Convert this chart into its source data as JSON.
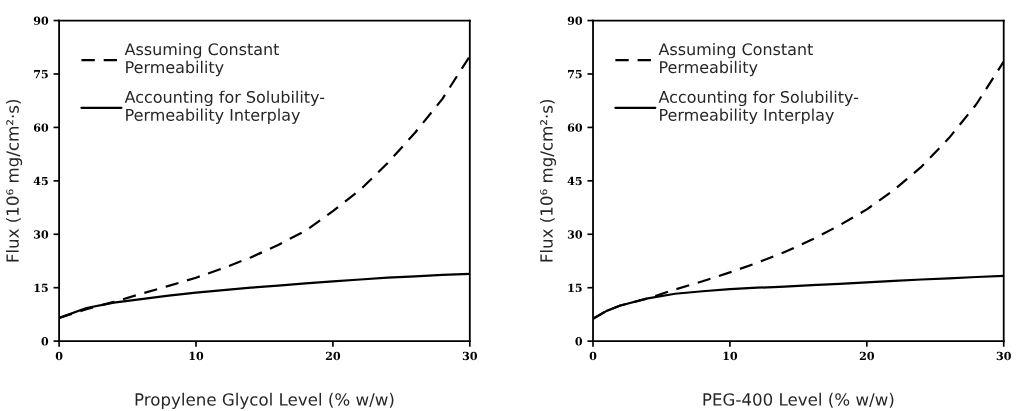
{
  "chart_data": [
    {
      "type": "line",
      "xlabel": "Propylene Glycol Level (% w/w)",
      "ylabel": "Flux (10⁶ mg/cm²·s)",
      "x": [
        0,
        2,
        4,
        6,
        8,
        10,
        12,
        14,
        16,
        18,
        20,
        22,
        24,
        26,
        28,
        30
      ],
      "series": [
        {
          "name": "Assuming Constant\nPermeability",
          "color": "#000000",
          "line_style": "dashed",
          "values": [
            6.5,
            9,
            11,
            13.3,
            15.5,
            17.8,
            20.5,
            23.5,
            27,
            31,
            36.5,
            42.5,
            50,
            58.5,
            68,
            80
          ]
        },
        {
          "name": "Accounting for Solubility-\nPermeability Interplay",
          "color": "#000000",
          "line_style": "solid",
          "values": [
            6.5,
            9.3,
            10.8,
            11.8,
            12.8,
            13.6,
            14.3,
            15,
            15.6,
            16.2,
            16.8,
            17.3,
            17.8,
            18.2,
            18.6,
            18.9
          ]
        }
      ],
      "xlim": [
        0,
        30
      ],
      "xticks": [
        0,
        10,
        20,
        30
      ],
      "ylim": [
        0,
        90
      ],
      "yticks": [
        0,
        15,
        30,
        45,
        60,
        75,
        90
      ],
      "grid": false,
      "legend": "top left",
      "marker": "none"
    },
    {
      "type": "line",
      "xlabel": "PEG-400 Level (% w/w)",
      "ylabel": "Flux (10⁶ mg/cm²·s)",
      "x": [
        0,
        1,
        2,
        4,
        6,
        8,
        10,
        12,
        14,
        16,
        18,
        20,
        22,
        24,
        26,
        28,
        30
      ],
      "series": [
        {
          "name": "Assuming Constant\nPermeability",
          "color": "#000000",
          "line_style": "dashed",
          "values": [
            6.3,
            8.5,
            10,
            12,
            14.5,
            16.8,
            19.3,
            22,
            25,
            28.5,
            32.5,
            37,
            42.5,
            49,
            57,
            66.5,
            78.5
          ]
        },
        {
          "name": "Accounting for Solubility-\nPermeability Interplay",
          "color": "#000000",
          "line_style": "solid",
          "values": [
            6.3,
            8.5,
            10,
            12,
            13.3,
            14,
            14.6,
            15,
            15.3,
            15.7,
            16.1,
            16.5,
            16.9,
            17.3,
            17.6,
            18,
            18.3
          ]
        }
      ],
      "xlim": [
        0,
        30
      ],
      "xticks": [
        0,
        10,
        20,
        30
      ],
      "ylim": [
        0,
        90
      ],
      "yticks": [
        0,
        15,
        30,
        45,
        60,
        75,
        90
      ],
      "grid": false,
      "legend": "top left",
      "marker": "none"
    }
  ]
}
